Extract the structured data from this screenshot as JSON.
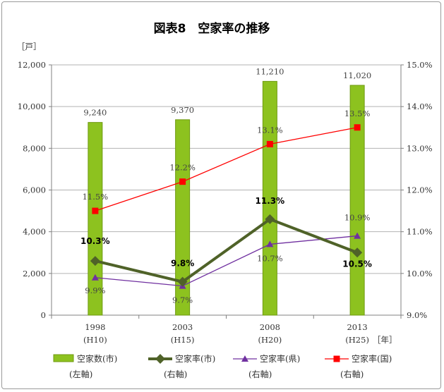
{
  "chart_data": {
    "type": "bar",
    "title": "図表8　空家率の推移",
    "y_left_unit": "［戸］",
    "x_unit": "［年］",
    "categories": [
      {
        "year": "1998",
        "era": "(H10)"
      },
      {
        "year": "2003",
        "era": "(H15)"
      },
      {
        "year": "2008",
        "era": "(H20)"
      },
      {
        "year": "2013",
        "era": "(H25)"
      }
    ],
    "y_left": {
      "min": 0,
      "max": 12000,
      "step": 2000,
      "ticks": [
        "0",
        "2,000",
        "4,000",
        "6,000",
        "8,000",
        "10,000",
        "12,000"
      ]
    },
    "y_right": {
      "min": 9.0,
      "max": 15.0,
      "step": 1.0,
      "ticks": [
        "9.0%",
        "10.0%",
        "11.0%",
        "12.0%",
        "13.0%",
        "14.0%",
        "15.0%"
      ]
    },
    "grid": "horizontal",
    "legend_position": "bottom",
    "series": [
      {
        "name": "空家数(市)",
        "axis_note": "(左軸)",
        "kind": "bar",
        "axis": "left",
        "color": "#8dc21f",
        "values": [
          9240,
          9370,
          11210,
          11020
        ],
        "labels": [
          "9,240",
          "9,370",
          "11,210",
          "11,020"
        ]
      },
      {
        "name": "空家率(市)",
        "axis_note": "(右軸)",
        "kind": "line",
        "axis": "right",
        "color": "#4f6228",
        "marker": "diamond",
        "values": [
          10.3,
          9.8,
          11.3,
          10.5
        ],
        "labels": [
          "10.3%",
          "9.8%",
          "11.3%",
          "10.5%"
        ]
      },
      {
        "name": "空家率(県)",
        "axis_note": "(右軸)",
        "kind": "line",
        "axis": "right",
        "color": "#7030a0",
        "marker": "triangle",
        "values": [
          9.9,
          9.7,
          10.7,
          10.9
        ],
        "labels": [
          "9.9%",
          "9.7%",
          "10.7%",
          "10.9%"
        ]
      },
      {
        "name": "空家率(国)",
        "axis_note": "(右軸)",
        "kind": "line",
        "axis": "right",
        "color": "#ff0000",
        "marker": "square",
        "values": [
          11.5,
          12.2,
          13.1,
          13.5
        ],
        "labels": [
          "11.5%",
          "12.2%",
          "13.1%",
          "13.5%"
        ]
      }
    ]
  }
}
